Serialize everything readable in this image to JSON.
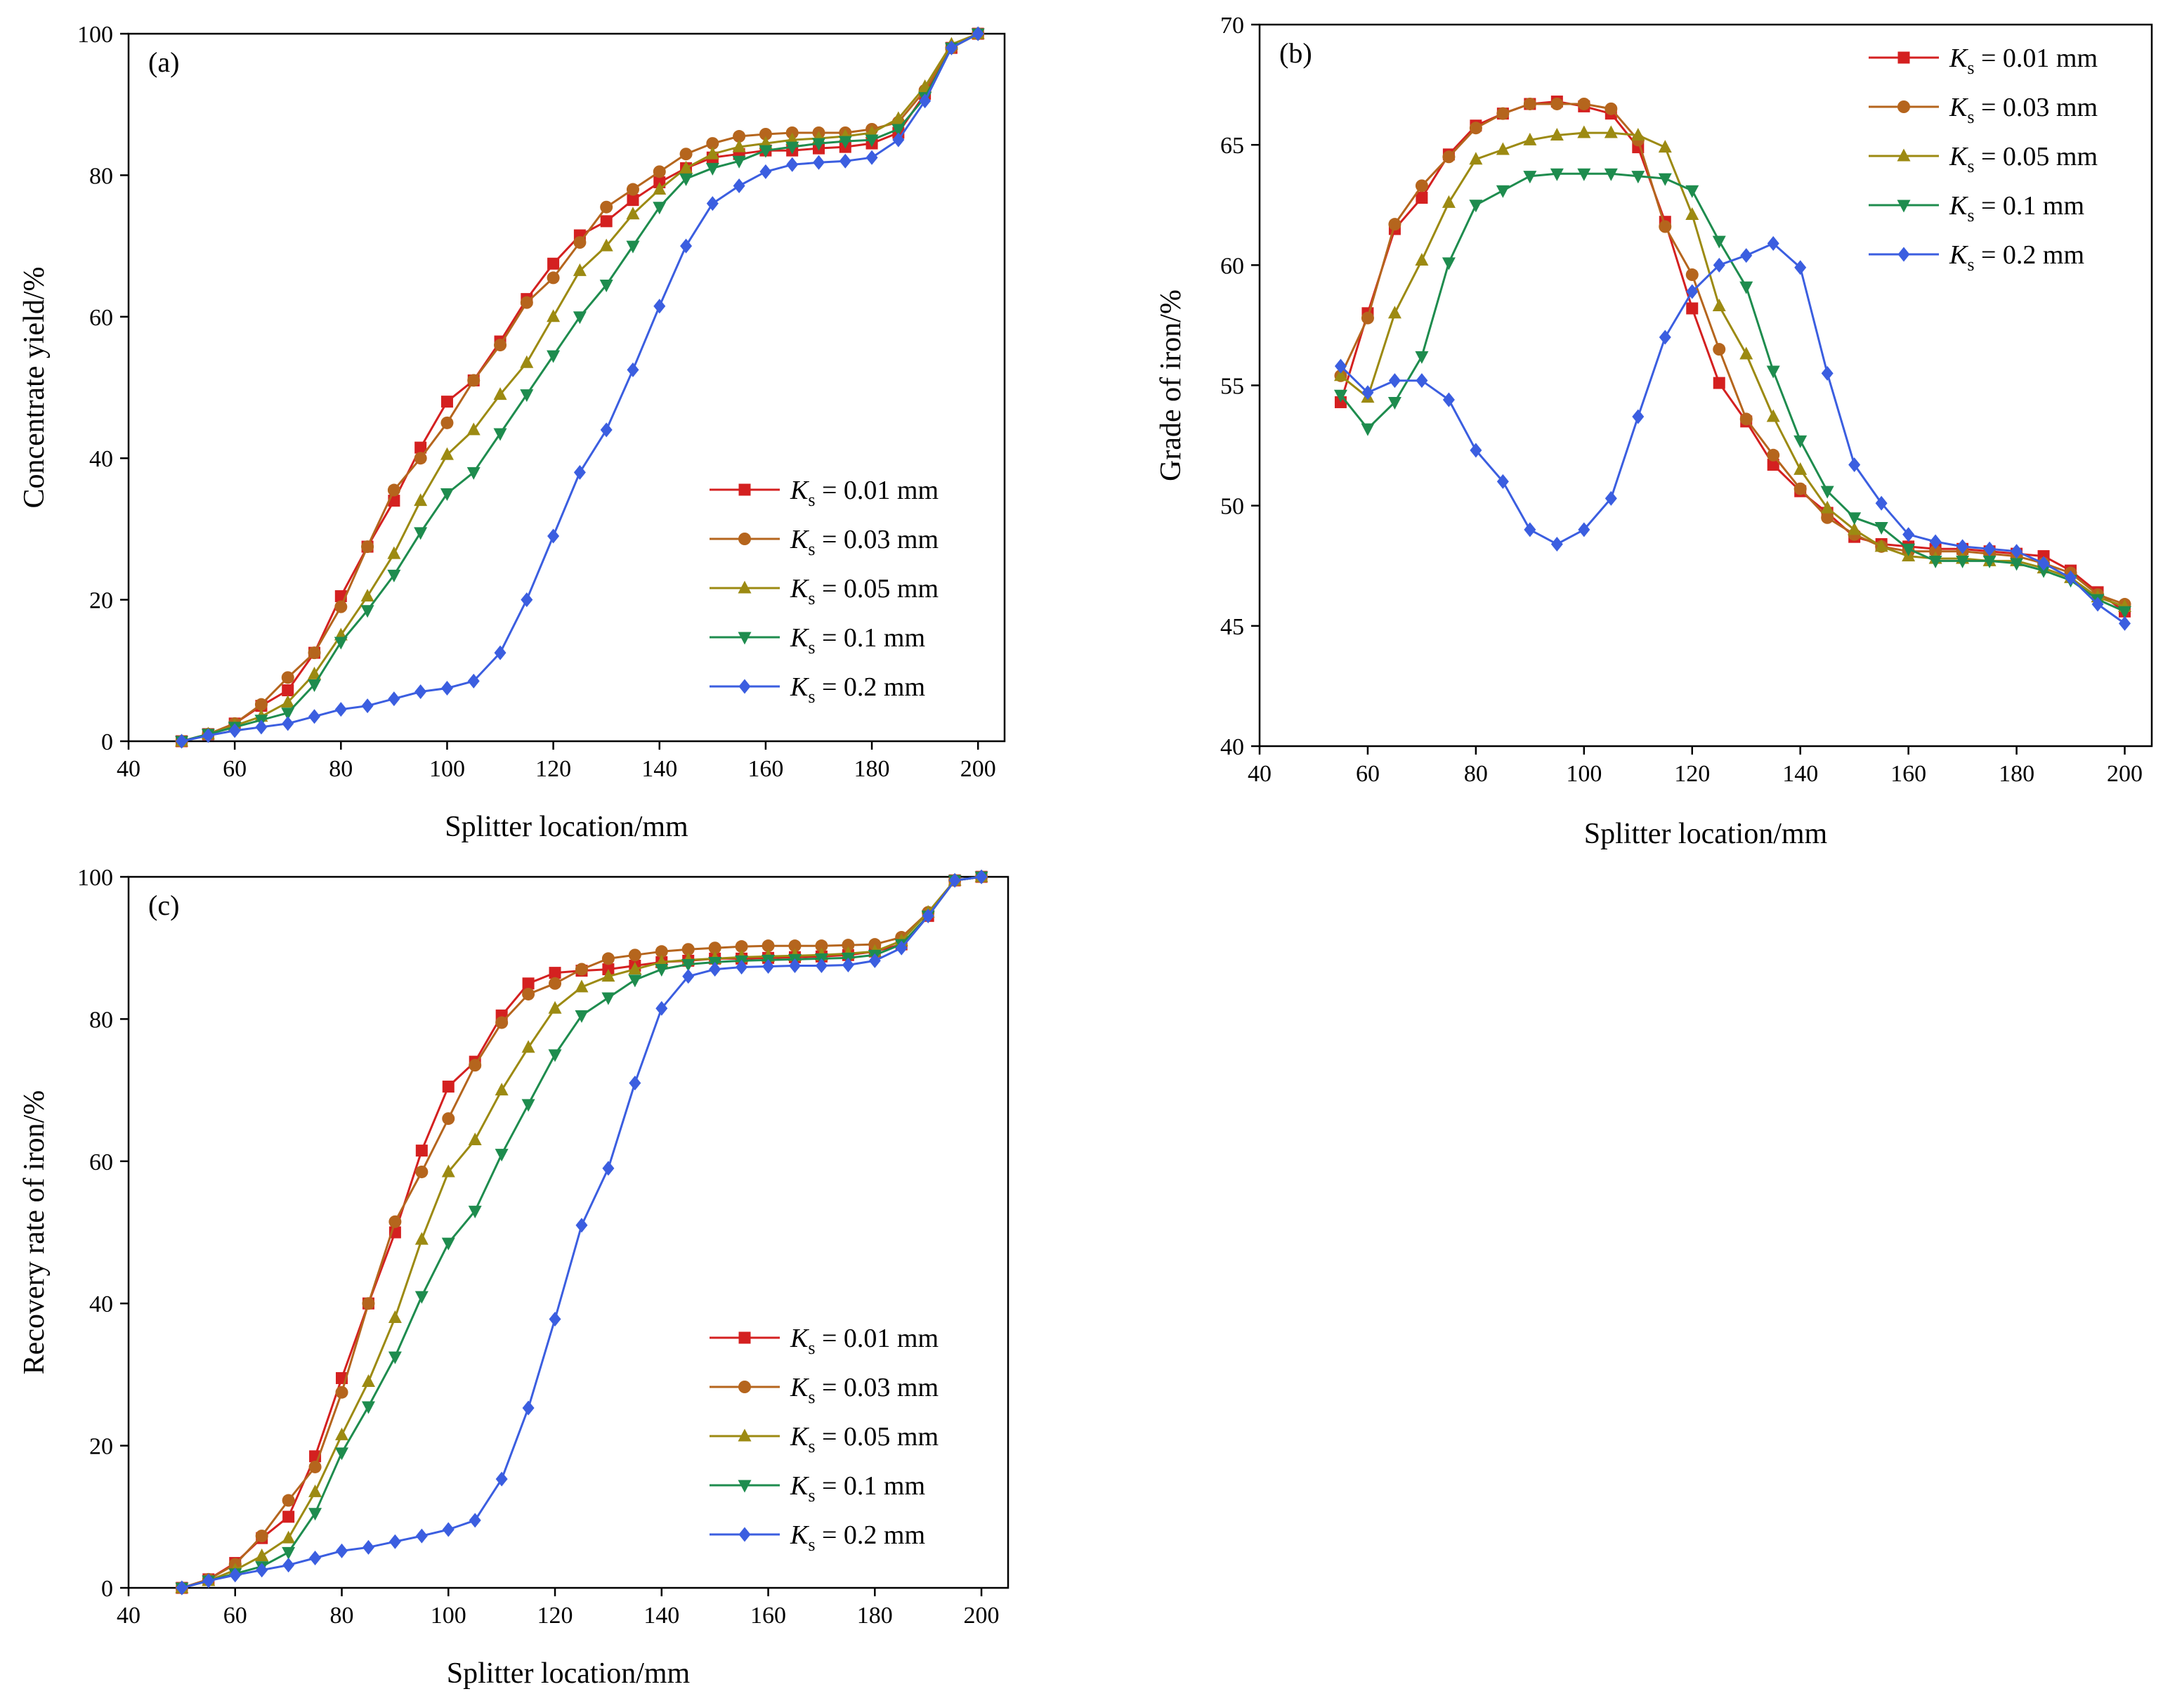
{
  "figure": {
    "legend_entries": [
      {
        "symbol": "K",
        "subscript": "s",
        "text": " = 0.01 mm",
        "color": "#d42020",
        "marker": "square"
      },
      {
        "symbol": "K",
        "subscript": "s",
        "text": " = 0.03 mm",
        "color": "#b5651d",
        "marker": "circle"
      },
      {
        "symbol": "K",
        "subscript": "s",
        "text": " = 0.05 mm",
        "color": "#9c8a12",
        "marker": "triangle-up"
      },
      {
        "symbol": "K",
        "subscript": "s",
        "text": " = 0.1 mm",
        "color": "#1e8c4e",
        "marker": "triangle-down"
      },
      {
        "symbol": "K",
        "subscript": "s",
        "text": " = 0.2 mm",
        "color": "#3b5ee0",
        "marker": "diamond"
      }
    ]
  },
  "chart_data": [
    {
      "id": "a",
      "type": "line",
      "panel_label": "(a)",
      "xlabel": "Splitter location/mm",
      "ylabel": "Concentrate yield/%",
      "xlim": [
        40,
        205
      ],
      "ylim": [
        0,
        100
      ],
      "xticks": [
        40,
        60,
        80,
        100,
        120,
        140,
        160,
        180,
        200
      ],
      "yticks": [
        0,
        20,
        40,
        60,
        80,
        100
      ],
      "legend_position": "bottom-right",
      "x": [
        50,
        55,
        60,
        65,
        70,
        75,
        80,
        85,
        90,
        95,
        100,
        105,
        110,
        115,
        120,
        125,
        130,
        135,
        140,
        145,
        150,
        155,
        160,
        165,
        170,
        175,
        180,
        185,
        190,
        195,
        200
      ],
      "series": [
        {
          "name": "Ks = 0.01 mm",
          "values": [
            0,
            1,
            2.5,
            5,
            7.2,
            12.5,
            20.5,
            27.5,
            34,
            41.5,
            48,
            51,
            56.5,
            62.5,
            67.5,
            71.5,
            73.5,
            76.5,
            79,
            81,
            82.5,
            83,
            83.5,
            83.5,
            83.8,
            84,
            84.5,
            86,
            91.5,
            98,
            100
          ]
        },
        {
          "name": "Ks = 0.03 mm",
          "values": [
            0,
            1,
            2.5,
            5.2,
            9,
            12.5,
            19,
            27.5,
            35.5,
            40,
            45,
            51,
            56,
            62,
            65.5,
            70.5,
            75.5,
            78,
            80.5,
            83,
            84.5,
            85.5,
            85.8,
            86,
            86,
            86,
            86.5,
            87.5,
            92,
            98,
            100
          ]
        },
        {
          "name": "Ks = 0.05 mm",
          "values": [
            0,
            1,
            2.2,
            3.5,
            5.5,
            9.5,
            15,
            20.5,
            26.5,
            34,
            40.5,
            44,
            49,
            53.5,
            60,
            66.5,
            70,
            74.5,
            78,
            81,
            83,
            84,
            84.5,
            85,
            85.2,
            85.5,
            86,
            88,
            92.5,
            98.5,
            100
          ]
        },
        {
          "name": "Ks = 0.1 mm",
          "values": [
            0,
            1,
            2,
            3,
            4,
            8,
            14,
            18.5,
            23.5,
            29.5,
            35,
            38,
            43.5,
            49,
            54.5,
            60,
            64.5,
            70,
            75.5,
            79.5,
            81,
            82,
            83.5,
            84,
            84.5,
            84.8,
            85,
            86.5,
            91,
            98,
            100
          ]
        },
        {
          "name": "Ks = 0.2 mm",
          "values": [
            0,
            0.8,
            1.5,
            2,
            2.5,
            3.5,
            4.5,
            5,
            6,
            7,
            7.5,
            8.5,
            12.5,
            20,
            29,
            38,
            44,
            52.5,
            61.5,
            70,
            76,
            78.5,
            80.5,
            81.5,
            81.8,
            82,
            82.5,
            85,
            90.5,
            98,
            100
          ]
        }
      ]
    },
    {
      "id": "b",
      "type": "line",
      "panel_label": "(b)",
      "xlabel": "Splitter location/mm",
      "ylabel": "Grade of iron/%",
      "xlim": [
        40,
        205
      ],
      "ylim": [
        40,
        70
      ],
      "xticks": [
        40,
        60,
        80,
        100,
        120,
        140,
        160,
        180,
        200
      ],
      "yticks": [
        40,
        45,
        50,
        55,
        60,
        65,
        70
      ],
      "legend_position": "top-right",
      "x": [
        55,
        60,
        65,
        70,
        75,
        80,
        85,
        90,
        95,
        100,
        105,
        110,
        115,
        120,
        125,
        130,
        135,
        140,
        145,
        150,
        155,
        160,
        165,
        170,
        175,
        180,
        185,
        190,
        195,
        200
      ],
      "series": [
        {
          "name": "Ks = 0.01 mm",
          "values": [
            54.3,
            58,
            61.5,
            62.8,
            64.6,
            65.8,
            66.3,
            66.7,
            66.8,
            66.6,
            66.3,
            64.9,
            61.8,
            58.2,
            55.1,
            53.5,
            51.7,
            50.6,
            49.7,
            48.7,
            48.4,
            48.3,
            48.2,
            48.2,
            48.1,
            48,
            47.9,
            47.3,
            46.4,
            45.6
          ]
        },
        {
          "name": "Ks = 0.03 mm",
          "values": [
            55.4,
            57.8,
            61.7,
            63.3,
            64.5,
            65.7,
            66.3,
            66.7,
            66.7,
            66.7,
            66.5,
            65.2,
            61.6,
            59.6,
            56.5,
            53.6,
            52.1,
            50.7,
            49.5,
            48.8,
            48.3,
            48.1,
            48.1,
            48.1,
            48,
            47.9,
            47.6,
            47.2,
            46.3,
            45.9
          ]
        },
        {
          "name": "Ks = 0.05 mm",
          "values": [
            55.4,
            54.5,
            58,
            60.2,
            62.6,
            64.4,
            64.8,
            65.2,
            65.4,
            65.5,
            65.5,
            65.4,
            64.9,
            62.1,
            58.3,
            56.3,
            53.7,
            51.5,
            49.9,
            49,
            48.3,
            47.9,
            47.8,
            47.8,
            47.7,
            47.7,
            47.4,
            47,
            46.2,
            45.8
          ]
        },
        {
          "name": "Ks = 0.1 mm",
          "values": [
            54.6,
            53.2,
            54.3,
            56.2,
            60.1,
            62.5,
            63.1,
            63.7,
            63.8,
            63.8,
            63.8,
            63.7,
            63.6,
            63.1,
            61,
            59.1,
            55.6,
            52.7,
            50.6,
            49.5,
            49.1,
            48.2,
            47.7,
            47.7,
            47.7,
            47.6,
            47.3,
            46.9,
            46.1,
            45.6
          ]
        },
        {
          "name": "Ks = 0.2 mm",
          "values": [
            55.8,
            54.7,
            55.2,
            55.2,
            54.4,
            52.3,
            51,
            49,
            48.4,
            49,
            50.3,
            53.7,
            57,
            58.9,
            60,
            60.4,
            60.9,
            59.9,
            55.5,
            51.7,
            50.1,
            48.8,
            48.5,
            48.3,
            48.2,
            48.1,
            47.6,
            47,
            45.9,
            45.1
          ]
        }
      ]
    },
    {
      "id": "c",
      "type": "line",
      "panel_label": "(c)",
      "xlabel": "Splitter location/mm",
      "ylabel": "Recovery rate of iron/%",
      "xlim": [
        40,
        205
      ],
      "ylim": [
        0,
        100
      ],
      "xticks": [
        40,
        60,
        80,
        100,
        120,
        140,
        160,
        180,
        200
      ],
      "yticks": [
        0,
        20,
        40,
        60,
        80,
        100
      ],
      "legend_position": "bottom-right",
      "x": [
        50,
        55,
        60,
        65,
        70,
        75,
        80,
        85,
        90,
        95,
        100,
        105,
        110,
        115,
        120,
        125,
        130,
        135,
        140,
        145,
        150,
        155,
        160,
        165,
        170,
        175,
        180,
        185,
        190,
        195,
        200
      ],
      "series": [
        {
          "name": "Ks = 0.01 mm",
          "values": [
            0,
            1.2,
            3.5,
            7,
            10,
            18.5,
            29.5,
            40,
            50,
            61.5,
            70.5,
            74,
            80.5,
            85,
            86.5,
            86.8,
            87,
            87.5,
            88,
            88.2,
            88.5,
            88.5,
            88.6,
            88.7,
            88.8,
            89,
            89.5,
            90.5,
            94.5,
            99.5,
            100
          ]
        },
        {
          "name": "Ks = 0.03 mm",
          "values": [
            0,
            1.2,
            3.3,
            7.3,
            12.3,
            17,
            27.5,
            40,
            51.5,
            58.5,
            66,
            73.5,
            79.5,
            83.5,
            85,
            87,
            88.5,
            89,
            89.5,
            89.8,
            90,
            90.2,
            90.3,
            90.3,
            90.3,
            90.4,
            90.5,
            91.5,
            95,
            99.5,
            100
          ]
        },
        {
          "name": "Ks = 0.05 mm",
          "values": [
            0,
            1,
            2.5,
            4.5,
            7,
            13.5,
            21.5,
            29,
            38,
            49,
            58.5,
            63,
            70,
            76,
            81.5,
            84.5,
            86,
            87,
            88,
            88.3,
            88.5,
            88.7,
            88.8,
            88.9,
            89,
            89.2,
            89.5,
            91,
            95,
            99.5,
            100
          ]
        },
        {
          "name": "Ks = 0.1 mm",
          "values": [
            0,
            1,
            2,
            3,
            5,
            10.5,
            19,
            25.5,
            32.5,
            41,
            48.5,
            53,
            61,
            68,
            75,
            80.5,
            83,
            85.5,
            87,
            87.7,
            88,
            88.2,
            88.3,
            88.4,
            88.5,
            88.6,
            89,
            90.5,
            94.5,
            99.5,
            100
          ]
        },
        {
          "name": "Ks = 0.2 mm",
          "values": [
            0,
            1,
            1.8,
            2.5,
            3.2,
            4.2,
            5.2,
            5.7,
            6.5,
            7.3,
            8.2,
            9.5,
            15.3,
            25.3,
            37.8,
            51,
            59,
            71,
            81.5,
            86,
            87,
            87.3,
            87.4,
            87.5,
            87.5,
            87.6,
            88.2,
            90,
            94.5,
            99.5,
            100
          ]
        }
      ]
    }
  ]
}
